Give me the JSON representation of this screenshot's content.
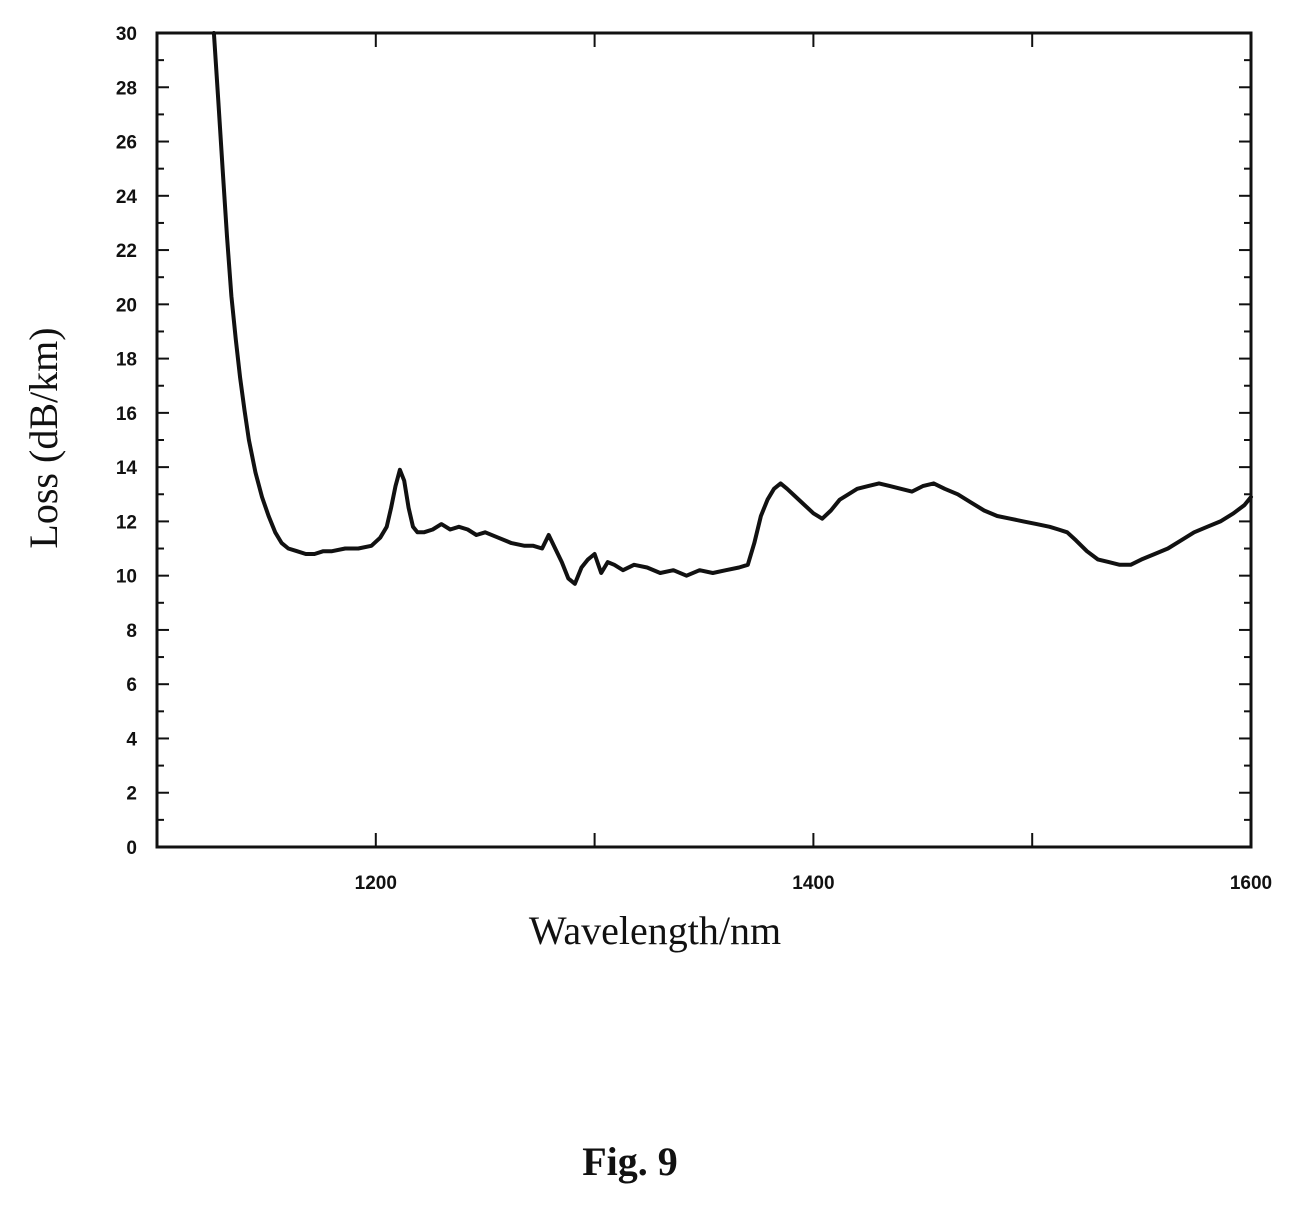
{
  "figure": {
    "caption": "Fig. 9"
  },
  "chart_data": {
    "type": "line",
    "title": "",
    "xlabel": "Wavelength/nm",
    "ylabel": "Loss (dB/km)",
    "xlim": [
      1100,
      1600
    ],
    "ylim": [
      0,
      30
    ],
    "x_ticks_major": [
      1100,
      1200,
      1300,
      1400,
      1500,
      1600
    ],
    "x_tick_labels": [
      "",
      "1200",
      "",
      "1400",
      "",
      "1600"
    ],
    "y_tick_labels": [
      "0",
      "2",
      "4",
      "6",
      "8",
      "10",
      "12",
      "14",
      "16",
      "18",
      "20",
      "22",
      "24",
      "26",
      "28",
      "30"
    ],
    "grid": false,
    "legend": "none",
    "line_color": "#111111",
    "series": [
      {
        "x": [
          1126,
          1128,
          1130,
          1132,
          1134,
          1136,
          1138,
          1140,
          1142,
          1145,
          1148,
          1151,
          1154,
          1157,
          1160,
          1164,
          1168,
          1172,
          1176,
          1180,
          1186,
          1192,
          1198,
          1202,
          1205,
          1207,
          1209,
          1211,
          1213,
          1215,
          1217,
          1219,
          1222,
          1226,
          1230,
          1234,
          1238,
          1242,
          1246,
          1250,
          1256,
          1262,
          1268,
          1272,
          1276,
          1279,
          1282,
          1285,
          1288,
          1291,
          1294,
          1297,
          1300,
          1303,
          1306,
          1309,
          1313,
          1318,
          1324,
          1330,
          1336,
          1342,
          1348,
          1354,
          1360,
          1366,
          1370,
          1373,
          1376,
          1379,
          1382,
          1385,
          1388,
          1392,
          1396,
          1400,
          1404,
          1408,
          1412,
          1416,
          1420,
          1425,
          1430,
          1435,
          1440,
          1445,
          1450,
          1455,
          1460,
          1466,
          1472,
          1478,
          1484,
          1490,
          1496,
          1502,
          1508,
          1512,
          1516,
          1520,
          1525,
          1530,
          1535,
          1540,
          1545,
          1550,
          1556,
          1562,
          1568,
          1574,
          1580,
          1586,
          1592,
          1597,
          1600
        ],
        "y": [
          30.0,
          27.5,
          25.0,
          22.5,
          20.3,
          18.7,
          17.3,
          16.1,
          15.0,
          13.8,
          12.9,
          12.2,
          11.6,
          11.2,
          11.0,
          10.9,
          10.8,
          10.8,
          10.9,
          10.9,
          11.0,
          11.0,
          11.1,
          11.4,
          11.8,
          12.5,
          13.3,
          13.9,
          13.5,
          12.5,
          11.8,
          11.6,
          11.6,
          11.7,
          11.9,
          11.7,
          11.8,
          11.7,
          11.5,
          11.6,
          11.4,
          11.2,
          11.1,
          11.1,
          11.0,
          11.5,
          11.0,
          10.5,
          9.9,
          9.7,
          10.3,
          10.6,
          10.8,
          10.1,
          10.5,
          10.4,
          10.2,
          10.4,
          10.3,
          10.1,
          10.2,
          10.0,
          10.2,
          10.1,
          10.2,
          10.3,
          10.4,
          11.2,
          12.2,
          12.8,
          13.2,
          13.4,
          13.2,
          12.9,
          12.6,
          12.3,
          12.1,
          12.4,
          12.8,
          13.0,
          13.2,
          13.3,
          13.4,
          13.3,
          13.2,
          13.1,
          13.3,
          13.4,
          13.2,
          13.0,
          12.7,
          12.4,
          12.2,
          12.1,
          12.0,
          11.9,
          11.8,
          11.7,
          11.6,
          11.3,
          10.9,
          10.6,
          10.5,
          10.4,
          10.4,
          10.6,
          10.8,
          11.0,
          11.3,
          11.6,
          11.8,
          12.0,
          12.3,
          12.6,
          12.9
        ]
      }
    ]
  }
}
